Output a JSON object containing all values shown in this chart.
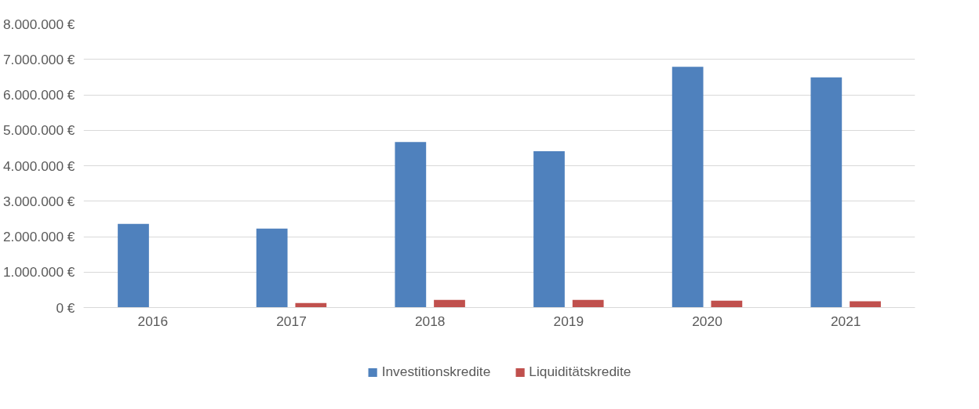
{
  "chart_data": {
    "type": "bar",
    "categories": [
      "2016",
      "2017",
      "2018",
      "2019",
      "2020",
      "2021"
    ],
    "series": [
      {
        "name": "Investitionskredite",
        "color": "#4f81bd",
        "values": [
          2360000,
          2230000,
          4670000,
          4410000,
          6790000,
          6490000
        ]
      },
      {
        "name": "Liquiditätskredite",
        "color": "#c0504d",
        "values": [
          null,
          130000,
          220000,
          220000,
          200000,
          180000
        ]
      }
    ],
    "ylim": [
      0,
      8000000
    ],
    "yticks": [
      {
        "value": 0,
        "label": "0 €"
      },
      {
        "value": 1000000,
        "label": "1.000.000 €"
      },
      {
        "value": 2000000,
        "label": "2.000.000 €"
      },
      {
        "value": 3000000,
        "label": "3.000.000 €"
      },
      {
        "value": 4000000,
        "label": "4.000.000 €"
      },
      {
        "value": 5000000,
        "label": "5.000.000 €"
      },
      {
        "value": 6000000,
        "label": "6.000.000 €"
      },
      {
        "value": 7000000,
        "label": "7.000.000 €"
      },
      {
        "value": 8000000,
        "label": "8.000.000 €"
      }
    ],
    "grid": "y",
    "legend": "bottom"
  }
}
